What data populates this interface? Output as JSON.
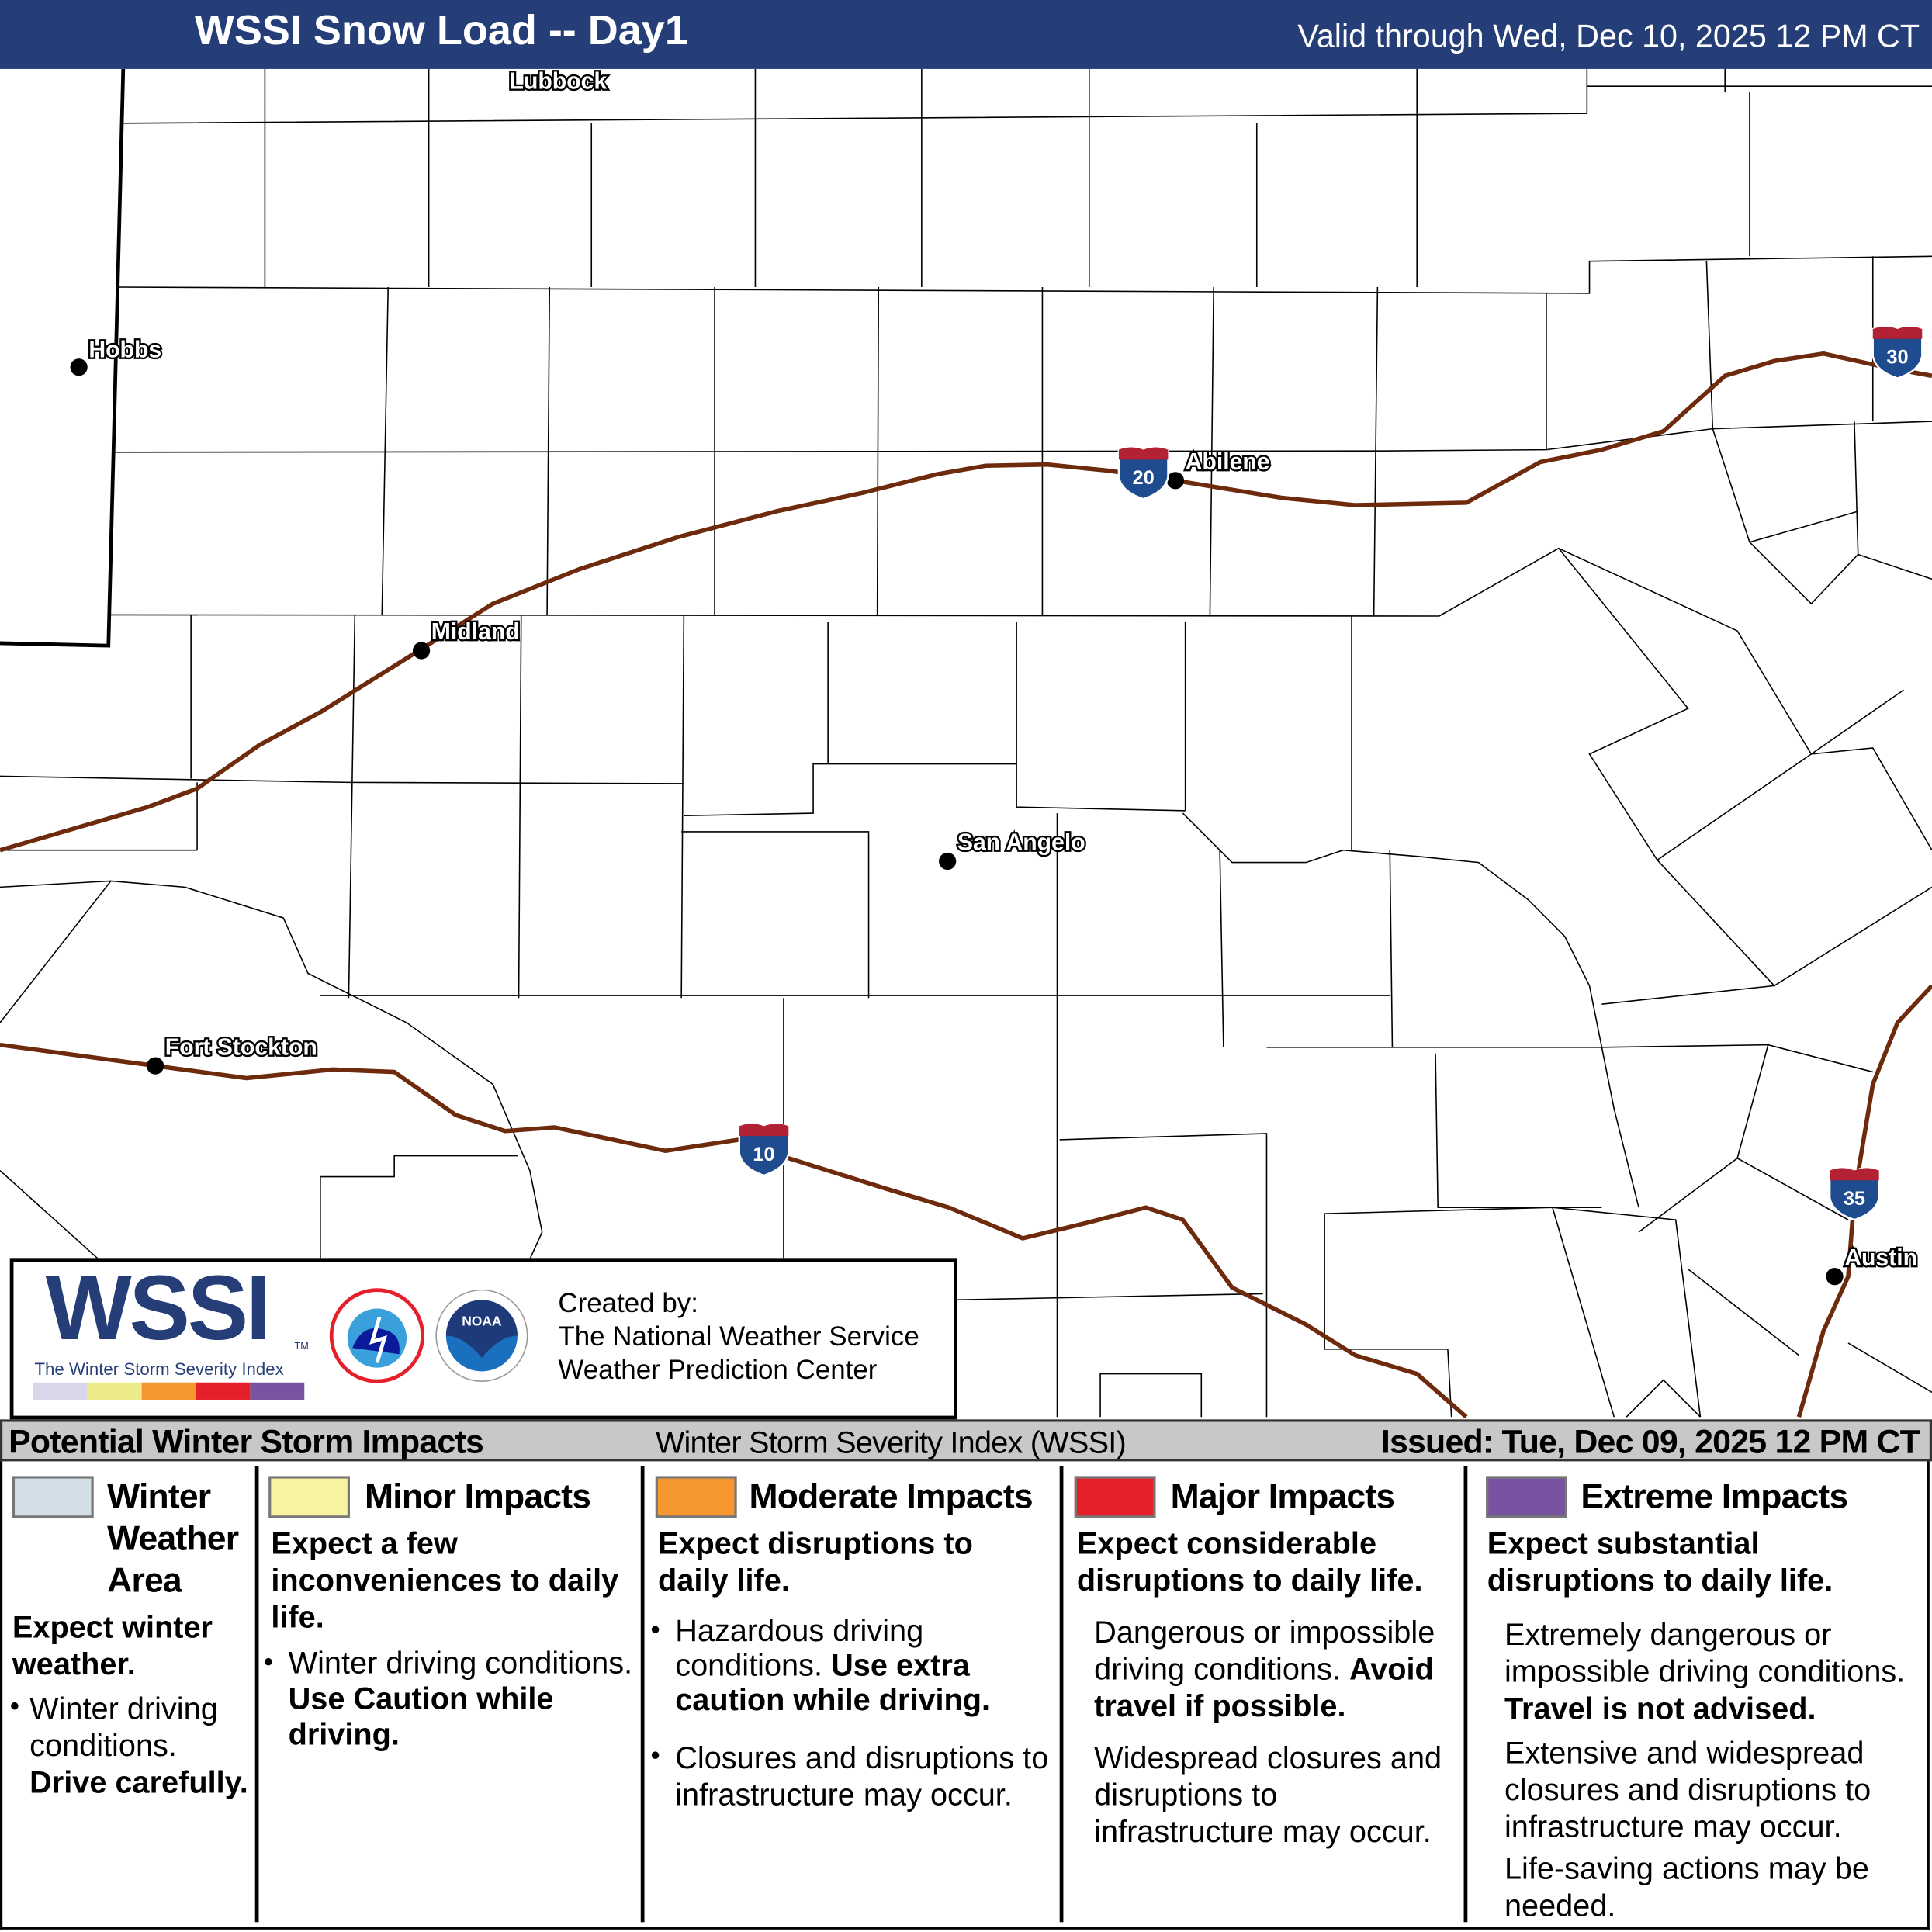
{
  "header": {
    "title": "WSSI Snow Load -- Day1",
    "valid": "Valid through Wed, Dec 10, 2025 12 PM CT",
    "color": "#253e78"
  },
  "map": {
    "cities": [
      {
        "name": "Lubbock"
      },
      {
        "name": "Hobbs"
      },
      {
        "name": "Abilene"
      },
      {
        "name": "Midland"
      },
      {
        "name": "San Angelo"
      },
      {
        "name": "Fort Stockton"
      },
      {
        "name": "Austin"
      }
    ],
    "interstates": [
      {
        "number": "20"
      },
      {
        "number": "30"
      },
      {
        "number": "10"
      },
      {
        "number": "35"
      }
    ],
    "highway_color": "#6e2a0c"
  },
  "info": {
    "logo": "WSSI",
    "logo_tm": "TM",
    "logo_sub": "The Winter Storm Severity Index",
    "created_by": "Created by:",
    "org1": "The National Weather Service",
    "org2": "Weather Prediction Center",
    "nws_logo": "NATIONAL WEATHER SERVICE",
    "noaa_logo": "NOAA"
  },
  "bar": {
    "title": "Potential Winter Storm Impacts",
    "index": "Winter Storm Severity Index (WSSI)",
    "issued": "Issued: Tue, Dec 09, 2025 12 PM CT"
  },
  "legend": [
    {
      "title": "Winter Weather Area",
      "color": "#d3dfe7",
      "lead": "Expect winter weather.",
      "b1": "Winter driving conditions.",
      "b1b": "Drive carefully."
    },
    {
      "title": "Minor Impacts",
      "color": "#f8f4a2",
      "lead": "Expect a few inconveniences to daily life.",
      "b1": "Winter driving conditions.",
      "b1b": "Use Caution while driving."
    },
    {
      "title": "Moderate Impacts",
      "color": "#f5962f",
      "lead": "Expect disruptions to daily life.",
      "b1": "Hazardous driving conditions.",
      "b1b": "Use extra caution while driving.",
      "b2": "Closures and disruptions to infrastructure may occur."
    },
    {
      "title": "Major Impacts",
      "color": "#e5202a",
      "lead": "Expect considerable disruptions to daily life.",
      "b1": "Dangerous or impossible driving conditions.",
      "b1b": "Avoid travel if possible.",
      "b2": "Widespread closures and disruptions to infrastructure may occur."
    },
    {
      "title": "Extreme Impacts",
      "color": "#7953a1",
      "lead": "Expect substantial disruptions to daily life.",
      "b1": "Extremely dangerous or impossible driving conditions.",
      "b1b": "Travel is not advised.",
      "b2": "Extensive and widespread closures and disruptions to infrastructure may occur.",
      "b3": "Life-saving actions may be needed."
    }
  ]
}
